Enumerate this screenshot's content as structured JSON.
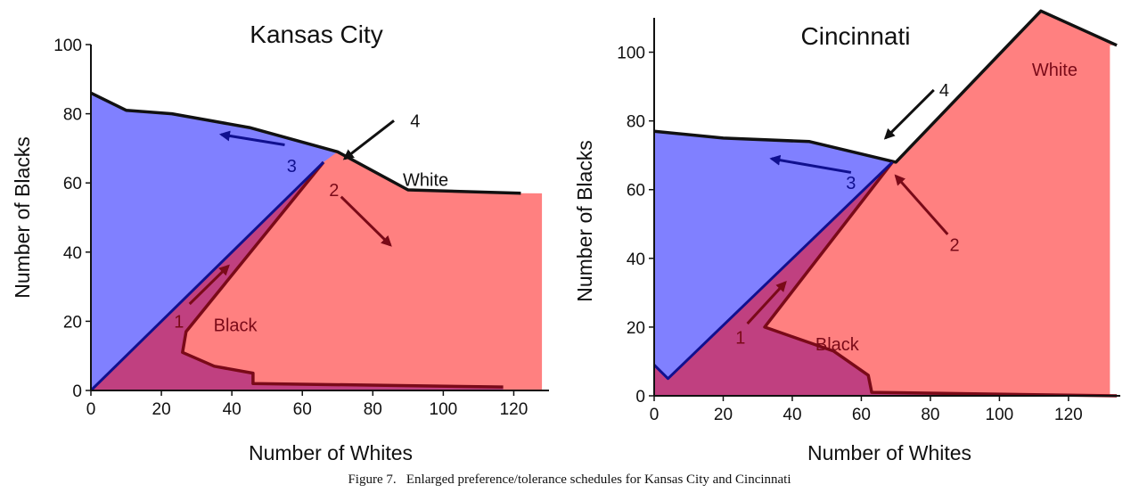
{
  "caption": "Figure 7.   Enlarged preference/tolerance schedules for Kansas City and Cincinnati",
  "colors": {
    "white_region": "#ff8080",
    "black_region": "#c04080",
    "blue_region": "#8080ff",
    "black_line": "#7a0a18",
    "blue_line": "#10108f",
    "white_line": "#111111"
  },
  "chart_data": [
    {
      "type": "area",
      "title": "Kansas City",
      "xlabel": "Number of Whites",
      "ylabel": "Number of Blacks",
      "xlim": [
        0,
        130
      ],
      "ylim": [
        0,
        100
      ],
      "x_ticks": [
        "0",
        "20",
        "40",
        "60",
        "80",
        "100",
        "120"
      ],
      "y_ticks": [
        "0",
        "20",
        "40",
        "60",
        "80",
        "100"
      ],
      "series": [
        {
          "name": "White",
          "x": [
            0,
            10,
            23,
            45,
            70,
            90,
            122
          ],
          "y": [
            86,
            81,
            80,
            76,
            69,
            58,
            57
          ]
        },
        {
          "name": "Black",
          "x": [
            66,
            27,
            26,
            35,
            46,
            46,
            117
          ],
          "y": [
            66,
            17,
            11,
            7,
            5,
            2,
            1
          ]
        }
      ],
      "blue_boundary": {
        "x": [
          0,
          66
        ],
        "y": [
          0,
          66
        ]
      },
      "white_fill_right": 128,
      "labels": [
        {
          "text": "White",
          "x": 95,
          "y": 61,
          "role": "white"
        },
        {
          "text": "Black",
          "x": 41,
          "y": 19,
          "role": "black"
        }
      ],
      "arrows": [
        {
          "num": "1",
          "from": [
            28,
            25
          ],
          "to": [
            39,
            36
          ],
          "role": "black",
          "num_at": [
            25,
            20
          ]
        },
        {
          "num": "2",
          "from": [
            71,
            56
          ],
          "to": [
            85,
            42
          ],
          "role": "black",
          "num_at": [
            69,
            58
          ]
        },
        {
          "num": "3",
          "from": [
            55,
            71
          ],
          "to": [
            37,
            74
          ],
          "role": "blue",
          "num_at": [
            57,
            65
          ]
        },
        {
          "num": "4",
          "from": [
            86,
            78
          ],
          "to": [
            72,
            67
          ],
          "role": "white",
          "num_at": [
            92,
            78
          ]
        }
      ]
    },
    {
      "type": "area",
      "title": "Cincinnati",
      "xlabel": "Number of Whites",
      "ylabel": "Number of Blacks",
      "xlim": [
        0,
        135
      ],
      "ylim": [
        0,
        110
      ],
      "x_ticks": [
        "0",
        "20",
        "40",
        "60",
        "80",
        "100",
        "120"
      ],
      "y_ticks": [
        "0",
        "20",
        "40",
        "60",
        "80",
        "100"
      ],
      "series": [
        {
          "name": "White",
          "x": [
            0,
            20,
            45,
            70,
            112,
            134
          ],
          "y": [
            77,
            75,
            74,
            68,
            112,
            102
          ]
        },
        {
          "name": "Black",
          "x": [
            69,
            32,
            52,
            62,
            63,
            134
          ],
          "y": [
            68,
            20,
            13,
            6,
            1,
            0
          ]
        }
      ],
      "blue_boundary": {
        "x": [
          0,
          4,
          69
        ],
        "y": [
          9,
          5,
          68
        ]
      },
      "white_fill_right": 132,
      "labels": [
        {
          "text": "White",
          "x": 116,
          "y": 95,
          "role": "white"
        },
        {
          "text": "Black",
          "x": 53,
          "y": 15,
          "role": "black"
        }
      ],
      "arrows": [
        {
          "num": "1",
          "from": [
            27,
            21
          ],
          "to": [
            38,
            33
          ],
          "role": "black",
          "num_at": [
            25,
            17
          ]
        },
        {
          "num": "2",
          "from": [
            85,
            47
          ],
          "to": [
            70,
            64
          ],
          "role": "black",
          "num_at": [
            87,
            44
          ]
        },
        {
          "num": "3",
          "from": [
            57,
            65
          ],
          "to": [
            34,
            69
          ],
          "role": "blue",
          "num_at": [
            57,
            62
          ]
        },
        {
          "num": "4",
          "from": [
            81,
            89
          ],
          "to": [
            67,
            75
          ],
          "role": "white",
          "num_at": [
            84,
            89
          ]
        }
      ]
    }
  ]
}
